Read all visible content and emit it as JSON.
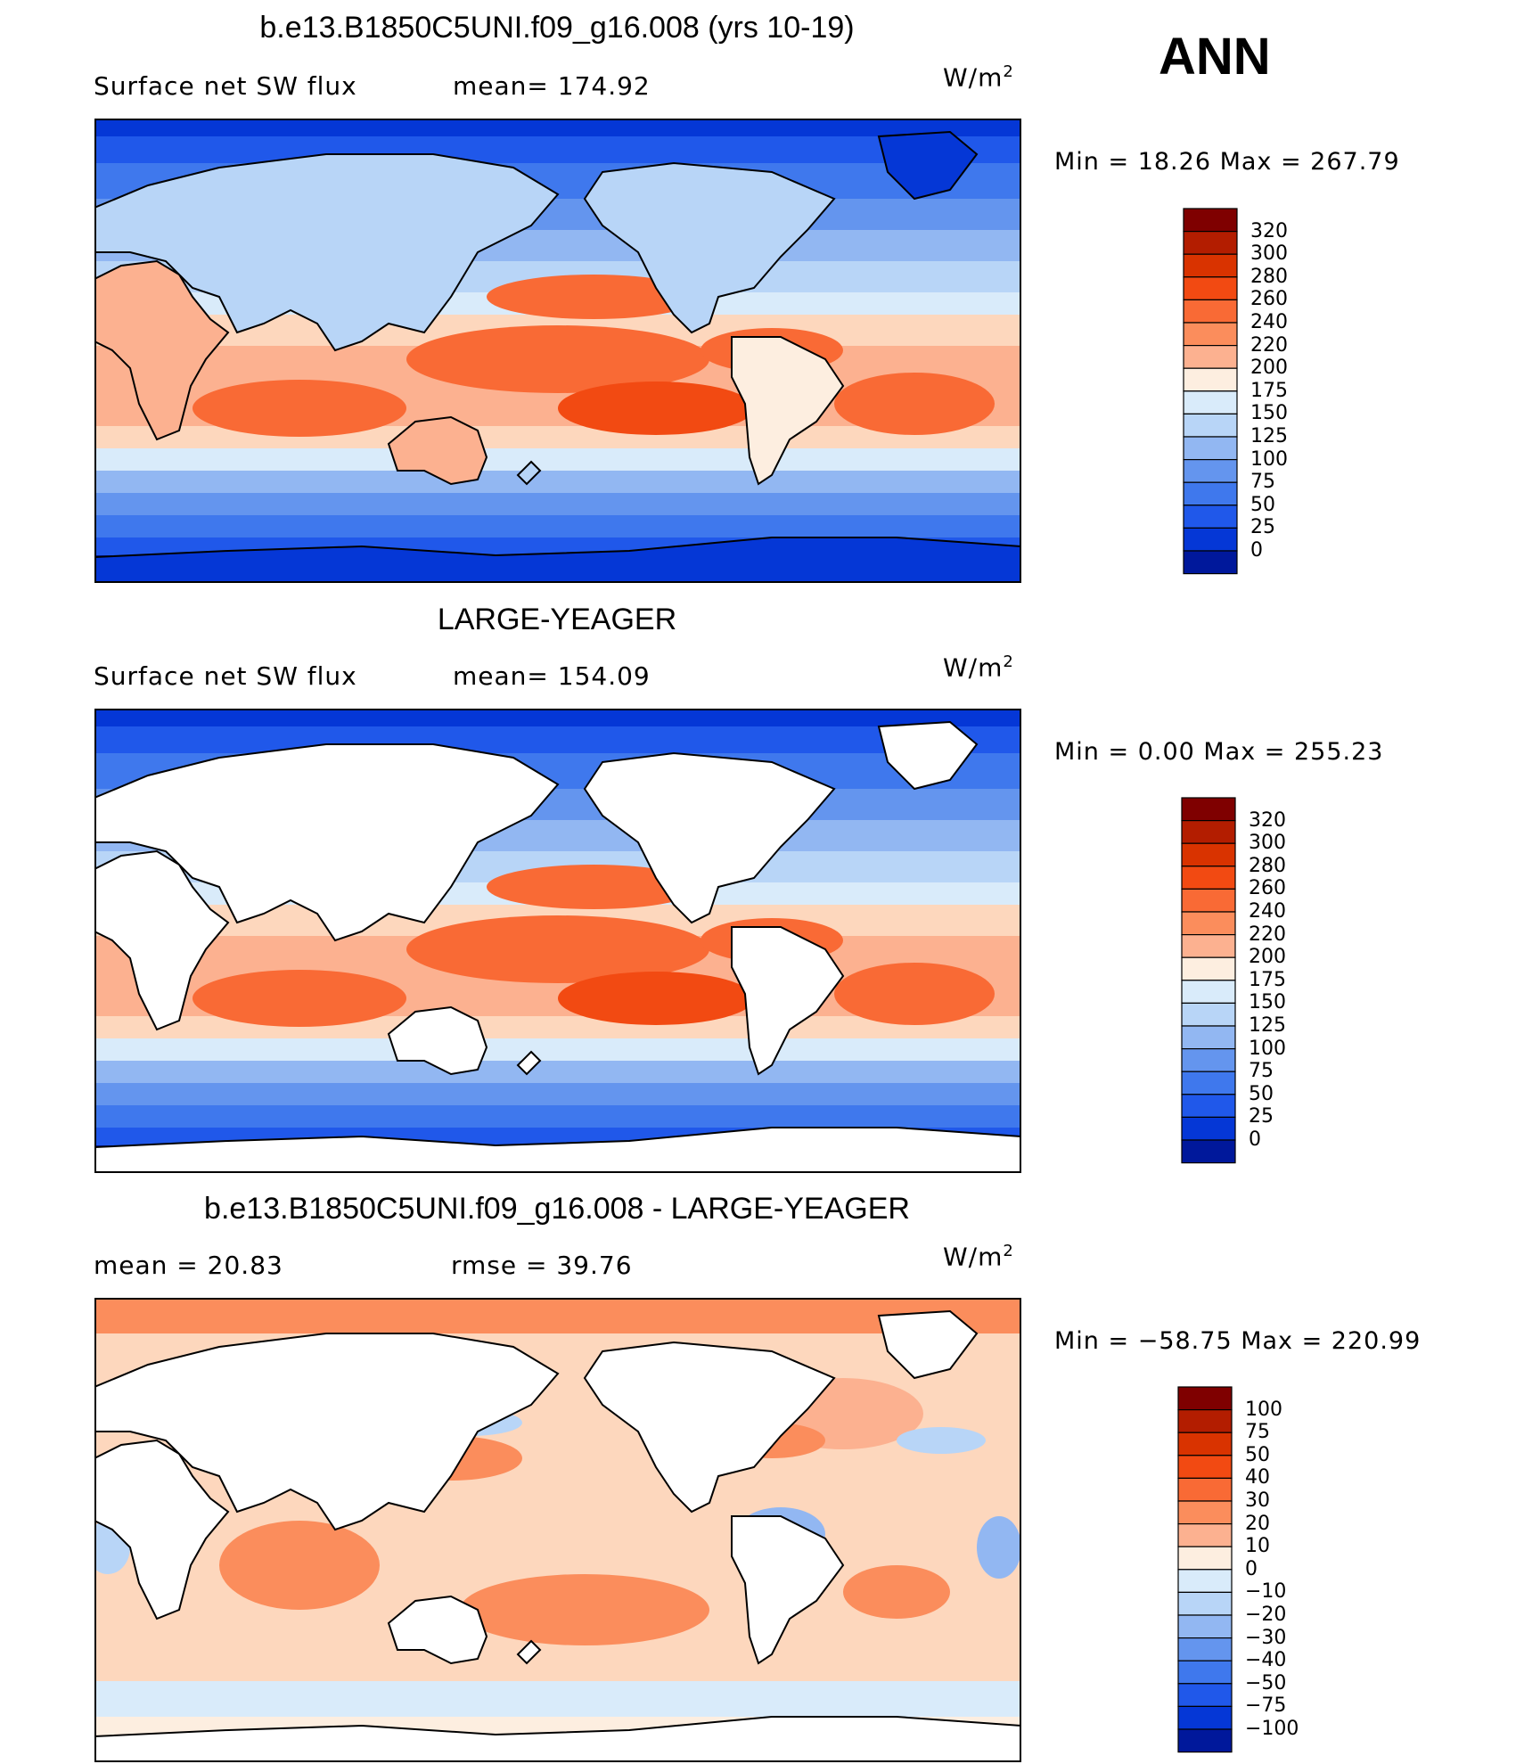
{
  "season": "ANN",
  "panels": [
    {
      "title": "b.e13.B1850C5UNI.f09_g16.008 (yrs 10-19)",
      "variable": "Surface net SW flux",
      "stat_text": "mean=  174.92",
      "stat2_text": "",
      "units": "W/m",
      "units_sup": "2",
      "minmax": "Min  =    18.26  Max  =  267.79",
      "mean": 174.92,
      "min": 18.26,
      "max": 267.79,
      "land_masked": false,
      "colorbar_labels": [
        "320",
        "300",
        "280",
        "260",
        "240",
        "220",
        "200",
        "175",
        "150",
        "125",
        "100",
        "75",
        "50",
        "25",
        "0"
      ],
      "colorbar_colors": [
        "#7f0000",
        "#b31d00",
        "#d93300",
        "#f24a12",
        "#f96a35",
        "#fb8d5c",
        "#fcb190",
        "#fdd7bd",
        "#fdeee0",
        "#d9ebfa",
        "#b8d5f7",
        "#92b7f2",
        "#6495ee",
        "#3f78ed",
        "#2058ea",
        "#0537d6",
        "#00189b"
      ]
    },
    {
      "title": "LARGE-YEAGER",
      "variable": "Surface net SW flux",
      "stat_text": "mean=  154.09",
      "stat2_text": "",
      "units": "W/m",
      "units_sup": "2",
      "minmax": "Min  =     0.00  Max  =  255.23",
      "mean": 154.09,
      "min": 0.0,
      "max": 255.23,
      "land_masked": true,
      "colorbar_labels": [
        "320",
        "300",
        "280",
        "260",
        "240",
        "220",
        "200",
        "175",
        "150",
        "125",
        "100",
        "75",
        "50",
        "25",
        "0"
      ],
      "colorbar_colors": [
        "#7f0000",
        "#b31d00",
        "#d93300",
        "#f24a12",
        "#f96a35",
        "#fb8d5c",
        "#fcb190",
        "#fdd7bd",
        "#fdeee0",
        "#d9ebfa",
        "#b8d5f7",
        "#92b7f2",
        "#6495ee",
        "#3f78ed",
        "#2058ea",
        "#0537d6",
        "#00189b"
      ]
    },
    {
      "title": "b.e13.B1850C5UNI.f09_g16.008 - LARGE-YEAGER",
      "variable": "mean  =    20.83",
      "stat_text": "rmse  =    39.76",
      "stat2_text": "",
      "units": "W/m",
      "units_sup": "2",
      "minmax": "Min  = −58.75  Max  =  220.99",
      "mean": 20.83,
      "rmse": 39.76,
      "min": -58.75,
      "max": 220.99,
      "land_masked": true,
      "colorbar_labels": [
        "100",
        "75",
        "50",
        "40",
        "30",
        "20",
        "10",
        "0",
        "−10",
        "−20",
        "−30",
        "−40",
        "−50",
        "−75",
        "−100"
      ],
      "colorbar_colors": [
        "#7f0000",
        "#b31d00",
        "#d93300",
        "#f24a12",
        "#f96a35",
        "#fb8d5c",
        "#fcb190",
        "#fdd7bd",
        "#fdeee0",
        "#d9ebfa",
        "#b8d5f7",
        "#92b7f2",
        "#6495ee",
        "#3f78ed",
        "#2058ea",
        "#0537d6",
        "#00189b"
      ]
    }
  ],
  "chart_data": [
    {
      "type": "heatmap",
      "title": "b.e13.B1850C5UNI.f09_g16.008 (yrs 10-19)",
      "variable": "Surface net SW flux",
      "units": "W/m2",
      "mean": 174.92,
      "min": 18.26,
      "max": 267.79,
      "levels": [
        0,
        25,
        50,
        75,
        100,
        125,
        150,
        175,
        200,
        220,
        240,
        260,
        280,
        300,
        320
      ]
    },
    {
      "type": "heatmap",
      "title": "LARGE-YEAGER",
      "variable": "Surface net SW flux",
      "units": "W/m2",
      "mean": 154.09,
      "min": 0.0,
      "max": 255.23,
      "levels": [
        0,
        25,
        50,
        75,
        100,
        125,
        150,
        175,
        200,
        220,
        240,
        260,
        280,
        300,
        320
      ]
    },
    {
      "type": "heatmap",
      "title": "b.e13.B1850C5UNI.f09_g16.008 - LARGE-YEAGER",
      "units": "W/m2",
      "mean": 20.83,
      "rmse": 39.76,
      "min": -58.75,
      "max": 220.99,
      "levels": [
        -100,
        -75,
        -50,
        -40,
        -30,
        -20,
        -10,
        0,
        10,
        20,
        30,
        40,
        50,
        75,
        100
      ]
    }
  ]
}
